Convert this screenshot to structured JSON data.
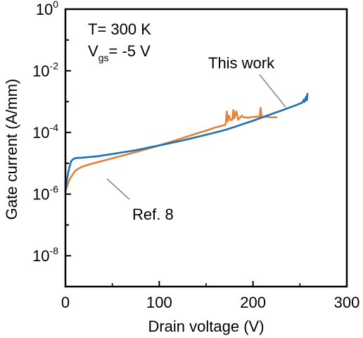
{
  "chart_data": {
    "type": "line",
    "xlabel": "Drain voltage (V)",
    "ylabel": "Gate current (A/mm)",
    "x_scale": "linear",
    "y_scale": "log",
    "xlim": [
      0,
      300
    ],
    "ylim": [
      1e-09,
      1
    ],
    "x_ticks": [
      0,
      100,
      200,
      300
    ],
    "x_tick_labels": [
      "0",
      "100",
      "200",
      "300"
    ],
    "y_ticks": [
      {
        "value": 1e-08,
        "base": "10",
        "exp": "-8"
      },
      {
        "value": 1e-06,
        "base": "10",
        "exp": "-6"
      },
      {
        "value": 0.0001,
        "base": "10",
        "exp": "-4"
      },
      {
        "value": 0.01,
        "base": "10",
        "exp": "-2"
      },
      {
        "value": 1,
        "base": "10",
        "exp": "0"
      }
    ],
    "conditions": {
      "temperature": "T= 300 K",
      "vgs_prefix": "V",
      "vgs_sub": "gs",
      "vgs_value": "= -5 V"
    },
    "series": [
      {
        "name": "This work",
        "color": "#1f6fb8",
        "x": [
          0,
          1,
          2,
          3,
          4,
          6,
          8,
          10,
          13,
          16,
          20,
          25,
          30,
          35,
          40,
          50,
          60,
          70,
          80,
          90,
          100,
          110,
          120,
          130,
          140,
          150,
          160,
          170,
          180,
          190,
          200,
          210,
          220,
          230,
          240,
          245,
          250,
          253,
          254,
          255,
          256,
          257,
          257.5,
          258
        ],
        "y": [
          1.2e-06,
          2.2e-06,
          3.5e-06,
          5e-06,
          7e-06,
          1.15e-05,
          1.35e-05,
          1.45e-05,
          1.5e-05,
          1.5e-05,
          1.55e-05,
          1.6e-05,
          1.65e-05,
          1.7e-05,
          1.8e-05,
          2e-05,
          2.25e-05,
          2.5e-05,
          2.85e-05,
          3.3e-05,
          3.8e-05,
          4.4e-05,
          5.1e-05,
          6e-05,
          7.1e-05,
          8.4e-05,
          0.0001,
          0.00012,
          0.00015,
          0.00019,
          0.00024,
          0.00031,
          0.0004,
          0.00051,
          0.00066,
          0.00075,
          0.00086,
          0.00095,
          0.00115,
          0.00098,
          0.0013,
          0.0015,
          0.0011,
          0.0018
        ]
      },
      {
        "name": "Ref. 8",
        "color": "#e8803a",
        "x": [
          0,
          1,
          2,
          3,
          4,
          6,
          8,
          10,
          12,
          15,
          18,
          22,
          26,
          30,
          40,
          50,
          60,
          70,
          80,
          90,
          100,
          110,
          120,
          130,
          140,
          150,
          160,
          165,
          170,
          171,
          172,
          173,
          174,
          176,
          178,
          179,
          180,
          181,
          182,
          183,
          184,
          186,
          188,
          190,
          195,
          200,
          205,
          207,
          208,
          209,
          210,
          212,
          215,
          220,
          225
        ],
        "y": [
          1.2e-06,
          1.5e-06,
          1.9e-06,
          2.3e-06,
          2.8e-06,
          3.6e-06,
          4.5e-06,
          5.5e-06,
          6.2e-06,
          7e-06,
          7.8e-06,
          8.5e-06,
          9.3e-06,
          1e-05,
          1.2e-05,
          1.45e-05,
          1.75e-05,
          2.1e-05,
          2.55e-05,
          3.1e-05,
          3.8e-05,
          4.7e-05,
          5.9e-05,
          7.4e-05,
          9.3e-05,
          0.000115,
          0.000145,
          0.00016,
          0.000175,
          0.0002,
          0.00048,
          0.00023,
          0.00036,
          0.00025,
          0.00026,
          0.00053,
          0.00029,
          0.00037,
          0.00048,
          0.00039,
          0.00026,
          0.0003,
          0.00035,
          0.00031,
          0.0003,
          0.00032,
          0.00033,
          0.0003,
          0.00063,
          0.00035,
          0.00032,
          0.00032,
          0.00032,
          0.00031,
          0.00031
        ]
      }
    ],
    "annotations": [
      {
        "text": "This work",
        "series": "This work"
      },
      {
        "text": "Ref. 8",
        "series": "Ref. 8"
      }
    ],
    "grid": false
  }
}
